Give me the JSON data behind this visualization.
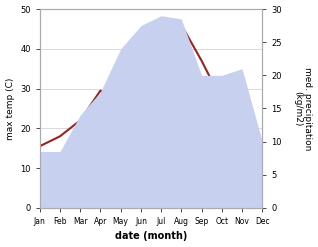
{
  "months": [
    "Jan",
    "Feb",
    "Mar",
    "Apr",
    "May",
    "Jun",
    "Jul",
    "Aug",
    "Sep",
    "Oct",
    "Nov",
    "Dec"
  ],
  "temp": [
    15.5,
    18.0,
    22.0,
    29.5,
    25.5,
    39.0,
    45.5,
    46.0,
    37.0,
    27.0,
    19.0,
    17.0
  ],
  "precip": [
    8.5,
    8.5,
    14.0,
    17.5,
    24.0,
    27.5,
    29.0,
    28.5,
    20.0,
    20.0,
    21.0,
    10.0
  ],
  "temp_color": "#992222",
  "precip_fill_color": "#c8d0f0",
  "xlabel": "date (month)",
  "ylabel_left": "max temp (C)",
  "ylabel_right": "med. precipitation\n(kg/m2)",
  "ylim_left": [
    0,
    50
  ],
  "ylim_right": [
    0,
    30
  ],
  "yticks_left": [
    0,
    10,
    20,
    30,
    40,
    50
  ],
  "yticks_right": [
    0,
    5,
    10,
    15,
    20,
    25,
    30
  ],
  "background_color": "#ffffff",
  "grid_color": "#cccccc",
  "spine_color": "#aaaaaa",
  "xlabel_fontsize": 7,
  "ylabel_fontsize": 6.5,
  "tick_fontsize": 6,
  "month_fontsize": 5.5,
  "line_width": 1.5
}
